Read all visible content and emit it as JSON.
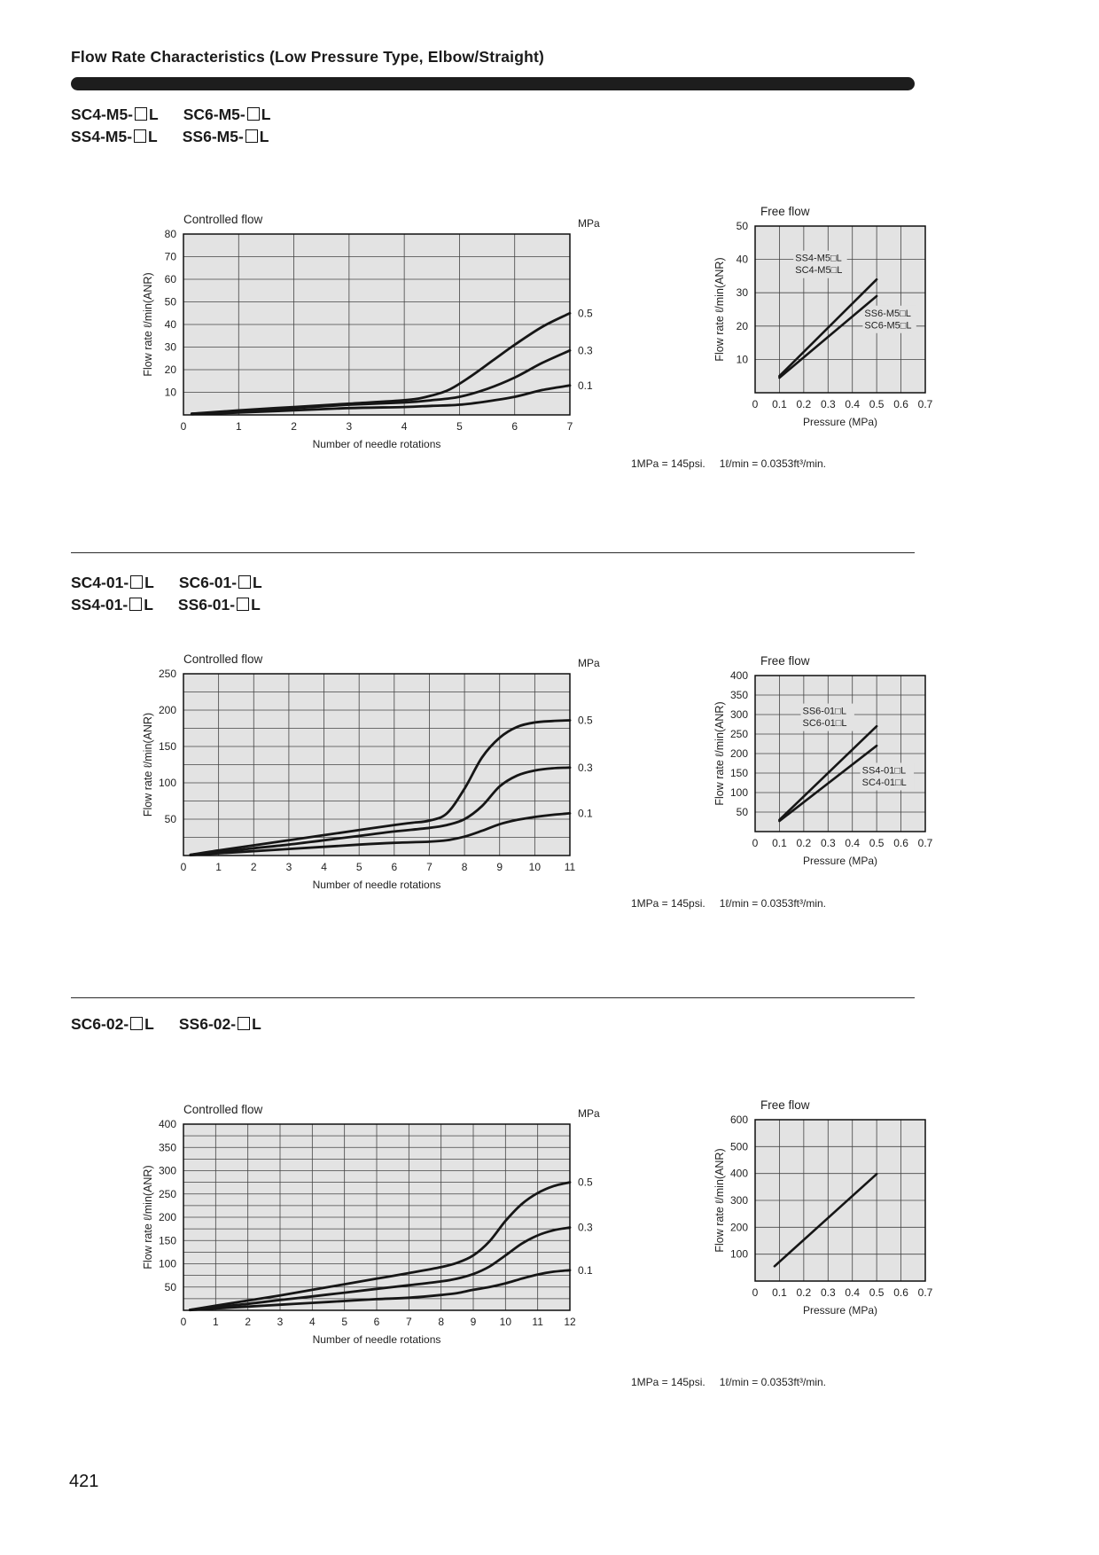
{
  "page": {
    "title": "Flow Rate Characteristics (Low Pressure Type, Elbow/Straight)",
    "page_number": "421",
    "footnote": {
      "psi": "1MPa = 145psi.",
      "flow": "1ℓ/min = 0.0353ft³/min."
    }
  },
  "sections": [
    {
      "models": [
        [
          "SC4-M5-□L",
          "SC6-M5-□L"
        ],
        [
          "SS4-M5-□L",
          "SS6-M5-□L"
        ]
      ]
    },
    {
      "models": [
        [
          "SC4-01-□L",
          "SC6-01-□L"
        ],
        [
          "SS4-01-□L",
          "SS6-01-□L"
        ]
      ]
    },
    {
      "models": [
        [
          "SC6-02-□L",
          "SS6-02-□L"
        ]
      ]
    }
  ],
  "chart_data": [
    {
      "id": "c1",
      "type": "line",
      "title": "Controlled flow",
      "ylabel": "Flow rate ℓ/min(ANR)",
      "xlabel": "Number of needle rotations",
      "unit_label": "MPa",
      "x_range": [
        0,
        7
      ],
      "y_range": [
        0,
        80
      ],
      "x_grid": 1,
      "y_grid": 10,
      "x_ticks": [
        0,
        1,
        2,
        3,
        4,
        5,
        6,
        7
      ],
      "y_ticks": [
        10,
        20,
        30,
        40,
        50,
        60,
        70,
        80
      ],
      "series": [
        {
          "name": "0.5 MPa",
          "points": [
            [
              0.15,
              0.5
            ],
            [
              1,
              2
            ],
            [
              2,
              3.5
            ],
            [
              3,
              5
            ],
            [
              4,
              6.5
            ],
            [
              4.4,
              8
            ],
            [
              4.8,
              11
            ],
            [
              5.2,
              17
            ],
            [
              5.6,
              24
            ],
            [
              6,
              31
            ],
            [
              6.5,
              39
            ],
            [
              7,
              45
            ]
          ]
        },
        {
          "name": "0.3 MPa",
          "points": [
            [
              0.15,
              0.5
            ],
            [
              1,
              1.5
            ],
            [
              2,
              3
            ],
            [
              3,
              4.5
            ],
            [
              4,
              5.5
            ],
            [
              4.5,
              6.5
            ],
            [
              5,
              8
            ],
            [
              5.5,
              11.5
            ],
            [
              6,
              16.5
            ],
            [
              6.5,
              23
            ],
            [
              7,
              28.5
            ]
          ]
        },
        {
          "name": "0.1 MPa",
          "points": [
            [
              0.15,
              0.3
            ],
            [
              1,
              1
            ],
            [
              2,
              2
            ],
            [
              3,
              3
            ],
            [
              4,
              3.5
            ],
            [
              4.5,
              4
            ],
            [
              5,
              4.5
            ],
            [
              5.5,
              6
            ],
            [
              6,
              8
            ],
            [
              6.5,
              11
            ],
            [
              7,
              13
            ]
          ]
        }
      ],
      "right_labels": [
        {
          "text": "0.5",
          "v": 45
        },
        {
          "text": "0.3",
          "v": 28.5
        },
        {
          "text": "0.1",
          "v": 13
        }
      ]
    },
    {
      "id": "f1",
      "type": "line",
      "title": "Free flow",
      "ylabel": "Flow rate ℓ/min(ANR)",
      "xlabel": "Pressure (MPa)",
      "x_range": [
        0,
        0.7
      ],
      "y_range": [
        0,
        50
      ],
      "x_grid": 0.1,
      "y_grid": 10,
      "x_ticks": [
        0,
        0.1,
        0.2,
        0.3,
        0.4,
        0.5,
        0.6,
        0.7
      ],
      "y_ticks": [
        10,
        20,
        30,
        40,
        50
      ],
      "series": [
        {
          "name": "SS4-M5□L / SC4-M5□L",
          "points": [
            [
              0.1,
              5
            ],
            [
              0.5,
              34
            ]
          ]
        },
        {
          "name": "SS6-M5□L / SC6-M5□L",
          "points": [
            [
              0.1,
              4.5
            ],
            [
              0.5,
              29
            ]
          ]
        }
      ],
      "annotations": [
        {
          "lines": [
            "SS4-M5□L",
            "SC4-M5□L"
          ],
          "x": 0.165,
          "y": 40.5
        },
        {
          "lines": [
            "SS6-M5□L",
            "SC6-M5□L"
          ],
          "x": 0.45,
          "y": 24
        }
      ]
    },
    {
      "id": "c2",
      "type": "line",
      "title": "Controlled flow",
      "ylabel": "Flow rate ℓ/min(ANR)",
      "xlabel": "Number of needle rotations",
      "unit_label": "MPa",
      "x_range": [
        0,
        11
      ],
      "y_range": [
        0,
        250
      ],
      "x_grid": 1,
      "y_grid": 25,
      "x_ticks": [
        0,
        1,
        2,
        3,
        4,
        5,
        6,
        7,
        8,
        9,
        10,
        11
      ],
      "y_ticks": [
        50,
        100,
        150,
        200,
        250
      ],
      "series": [
        {
          "name": "0.5 MPa",
          "points": [
            [
              0.2,
              1
            ],
            [
              1,
              7
            ],
            [
              2,
              14
            ],
            [
              3,
              21
            ],
            [
              4,
              28
            ],
            [
              5,
              35
            ],
            [
              6,
              42
            ],
            [
              6.5,
              45
            ],
            [
              7,
              48
            ],
            [
              7.5,
              58
            ],
            [
              8,
              92
            ],
            [
              8.5,
              135
            ],
            [
              9,
              162
            ],
            [
              9.5,
              177
            ],
            [
              10,
              183
            ],
            [
              10.5,
              185
            ],
            [
              11,
              186
            ]
          ]
        },
        {
          "name": "0.3 MPa",
          "points": [
            [
              0.2,
              1
            ],
            [
              1,
              5
            ],
            [
              2,
              10
            ],
            [
              3,
              15
            ],
            [
              4,
              21
            ],
            [
              5,
              27
            ],
            [
              6,
              33
            ],
            [
              7,
              38
            ],
            [
              7.5,
              42
            ],
            [
              8,
              50
            ],
            [
              8.5,
              68
            ],
            [
              9,
              95
            ],
            [
              9.5,
              110
            ],
            [
              10,
              117
            ],
            [
              10.5,
              120
            ],
            [
              11,
              121
            ]
          ]
        },
        {
          "name": "0.1 MPa",
          "points": [
            [
              0.2,
              0.5
            ],
            [
              1,
              3
            ],
            [
              2,
              6
            ],
            [
              3,
              9
            ],
            [
              4,
              12
            ],
            [
              5,
              15
            ],
            [
              6,
              17.5
            ],
            [
              7,
              19
            ],
            [
              7.5,
              21
            ],
            [
              8,
              26
            ],
            [
              8.5,
              34
            ],
            [
              9,
              43
            ],
            [
              9.5,
              49
            ],
            [
              10,
              53
            ],
            [
              10.5,
              56
            ],
            [
              11,
              58
            ]
          ]
        }
      ],
      "right_labels": [
        {
          "text": "0.5",
          "v": 186
        },
        {
          "text": "0.3",
          "v": 121
        },
        {
          "text": "0.1",
          "v": 58
        }
      ]
    },
    {
      "id": "f2",
      "type": "line",
      "title": "Free flow",
      "ylabel": "Flow rate ℓ/min(ANR)",
      "xlabel": "Pressure (MPa)",
      "x_range": [
        0,
        0.7
      ],
      "y_range": [
        0,
        400
      ],
      "x_grid": 0.1,
      "y_grid": 50,
      "x_ticks": [
        0,
        0.1,
        0.2,
        0.3,
        0.4,
        0.5,
        0.6,
        0.7
      ],
      "y_ticks": [
        50,
        100,
        150,
        200,
        250,
        300,
        350,
        400
      ],
      "series": [
        {
          "name": "SS6-01□L / SC6-01□L",
          "points": [
            [
              0.1,
              30
            ],
            [
              0.5,
              270
            ]
          ]
        },
        {
          "name": "SS4-01□L / SC4-01□L",
          "points": [
            [
              0.1,
              27
            ],
            [
              0.5,
              220
            ]
          ]
        }
      ],
      "annotations": [
        {
          "lines": [
            "SS6-01□L",
            "SC6-01□L"
          ],
          "x": 0.195,
          "y": 310
        },
        {
          "lines": [
            "SS4-01□L",
            "SC4-01□L"
          ],
          "x": 0.44,
          "y": 158
        }
      ]
    },
    {
      "id": "c3",
      "type": "line",
      "title": "Controlled flow",
      "ylabel": "Flow rate ℓ/min(ANR)",
      "xlabel": "Number of needle rotations",
      "unit_label": "MPa",
      "x_range": [
        0,
        12
      ],
      "y_range": [
        0,
        400
      ],
      "x_grid": 1,
      "y_grid": 25,
      "x_ticks": [
        0,
        1,
        2,
        3,
        4,
        5,
        6,
        7,
        8,
        9,
        10,
        11,
        12
      ],
      "y_ticks": [
        50,
        100,
        150,
        200,
        250,
        300,
        350,
        400
      ],
      "series": [
        {
          "name": "0.5 MPa",
          "points": [
            [
              0.2,
              1
            ],
            [
              1,
              10
            ],
            [
              2,
              21
            ],
            [
              3,
              32
            ],
            [
              4,
              44
            ],
            [
              5,
              56
            ],
            [
              6,
              68
            ],
            [
              7,
              80
            ],
            [
              8,
              93
            ],
            [
              8.5,
              102
            ],
            [
              9,
              118
            ],
            [
              9.5,
              148
            ],
            [
              10,
              192
            ],
            [
              10.5,
              228
            ],
            [
              11,
              252
            ],
            [
              11.5,
              267
            ],
            [
              12,
              275
            ]
          ]
        },
        {
          "name": "0.3 MPa",
          "points": [
            [
              0.2,
              1
            ],
            [
              1,
              7
            ],
            [
              2,
              14
            ],
            [
              3,
              22
            ],
            [
              4,
              30
            ],
            [
              5,
              38
            ],
            [
              6,
              46
            ],
            [
              7,
              54
            ],
            [
              8,
              62
            ],
            [
              8.5,
              68
            ],
            [
              9,
              78
            ],
            [
              9.5,
              94
            ],
            [
              10,
              118
            ],
            [
              10.5,
              143
            ],
            [
              11,
              161
            ],
            [
              11.5,
              172
            ],
            [
              12,
              178
            ]
          ]
        },
        {
          "name": "0.1 MPa",
          "points": [
            [
              0.2,
              0.5
            ],
            [
              1,
              4
            ],
            [
              2,
              8
            ],
            [
              3,
              12
            ],
            [
              4,
              16
            ],
            [
              5,
              20
            ],
            [
              6,
              24
            ],
            [
              7,
              27
            ],
            [
              8,
              33
            ],
            [
              8.5,
              37
            ],
            [
              9,
              44
            ],
            [
              9.5,
              50
            ],
            [
              10,
              58
            ],
            [
              10.5,
              68
            ],
            [
              11,
              77
            ],
            [
              11.5,
              83
            ],
            [
              12,
              86
            ]
          ]
        }
      ],
      "right_labels": [
        {
          "text": "0.5",
          "v": 275
        },
        {
          "text": "0.3",
          "v": 178
        },
        {
          "text": "0.1",
          "v": 86
        }
      ]
    },
    {
      "id": "f3",
      "type": "line",
      "title": "Free flow",
      "ylabel": "Flow rate ℓ/min(ANR)",
      "xlabel": "Pressure (MPa)",
      "x_range": [
        0,
        0.7
      ],
      "y_range": [
        0,
        600
      ],
      "x_grid": 0.1,
      "y_grid": 100,
      "x_ticks": [
        0,
        0.1,
        0.2,
        0.3,
        0.4,
        0.5,
        0.6,
        0.7
      ],
      "y_ticks": [
        100,
        200,
        300,
        400,
        500,
        600
      ],
      "series": [
        {
          "name": "SC6-02□L / SS6-02□L",
          "points": [
            [
              0.08,
              55
            ],
            [
              0.5,
              398
            ]
          ]
        }
      ]
    }
  ]
}
